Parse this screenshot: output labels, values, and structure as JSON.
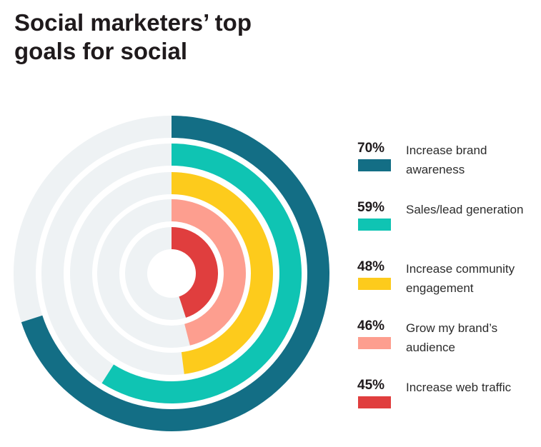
{
  "chart_data": {
    "type": "radial-bar",
    "title": "Social marketers’ top goals for social",
    "unit": "%",
    "range": [
      0,
      100
    ],
    "track_color": "#eef2f4",
    "legend_position": "right",
    "series": [
      {
        "label": "Increase brand awareness",
        "pct_label": "70%",
        "value": 70,
        "color": "#136e85"
      },
      {
        "label": "Sales/lead generation",
        "pct_label": "59%",
        "value": 59,
        "color": "#0fc4b3"
      },
      {
        "label": "Increase community engagement",
        "pct_label": "48%",
        "value": 48,
        "color": "#fdcb1c"
      },
      {
        "label": "Grow my brand’s audience",
        "pct_label": "46%",
        "value": 46,
        "color": "#fd9e8f"
      },
      {
        "label": "Increase web traffic",
        "pct_label": "45%",
        "value": 45,
        "color": "#e03e3e"
      }
    ]
  }
}
